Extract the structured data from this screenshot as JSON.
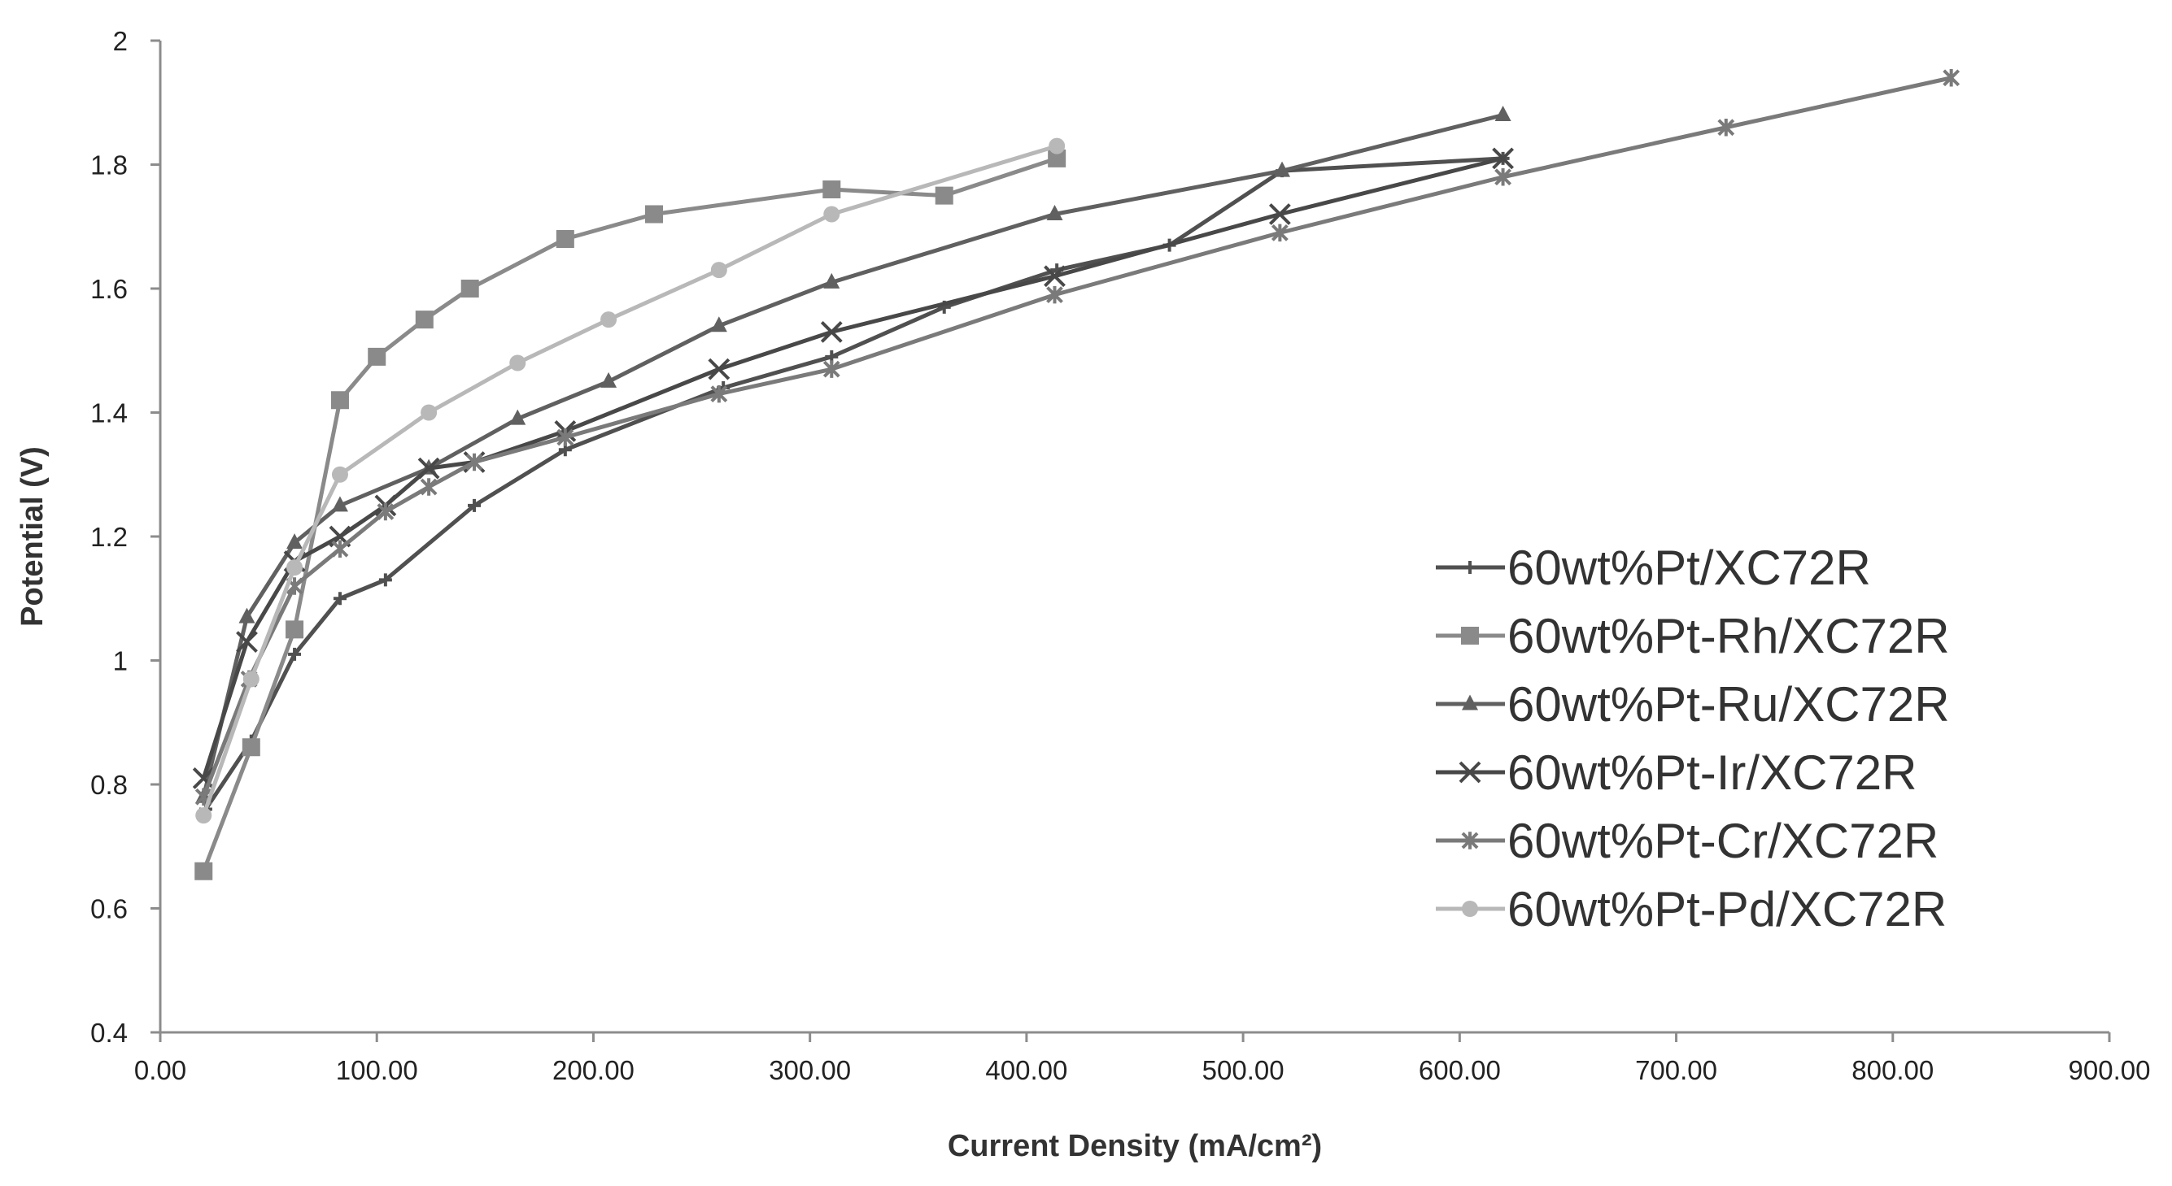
{
  "chart_data": {
    "type": "line",
    "title": "",
    "xlabel": "Current Density (mA/cm²)",
    "ylabel": "Potential (V)",
    "xlim": [
      0,
      900
    ],
    "ylim": [
      0.4,
      2
    ],
    "xticks": [
      "0.00",
      "100.00",
      "200.00",
      "300.00",
      "400.00",
      "500.00",
      "600.00",
      "700.00",
      "800.00",
      "900.00"
    ],
    "yticks": [
      "0.4",
      "0.6",
      "0.8",
      "1",
      "1.2",
      "1.4",
      "1.6",
      "1.8",
      "2"
    ],
    "grid": false,
    "legend_position": "right",
    "series": [
      {
        "name": "60wt%Pt/XC72R",
        "marker": "plus",
        "color": "#505050",
        "x": [
          21,
          42,
          62,
          83,
          104,
          145,
          187,
          260,
          310,
          362,
          414,
          466,
          518,
          620
        ],
        "y": [
          0.76,
          0.87,
          1.01,
          1.1,
          1.13,
          1.25,
          1.34,
          1.44,
          1.49,
          1.57,
          1.63,
          1.67,
          1.79,
          1.81
        ]
      },
      {
        "name": "60wt%Pt-Rh/XC72R",
        "marker": "square",
        "color": "#8a8a8a",
        "x": [
          20,
          42,
          62,
          83,
          100,
          122,
          143,
          187,
          228,
          310,
          362,
          414
        ],
        "y": [
          0.66,
          0.86,
          1.05,
          1.42,
          1.49,
          1.55,
          1.6,
          1.68,
          1.72,
          1.76,
          1.75,
          1.81
        ]
      },
      {
        "name": "60wt%Pt-Ru/XC72R",
        "marker": "triangle",
        "color": "#606060",
        "x": [
          20,
          40,
          62,
          83,
          124,
          165,
          207,
          258,
          310,
          413,
          518,
          620
        ],
        "y": [
          0.78,
          1.07,
          1.19,
          1.25,
          1.31,
          1.39,
          1.45,
          1.54,
          1.61,
          1.72,
          1.79,
          1.88
        ]
      },
      {
        "name": "60wt%Pt-Ir/XC72R",
        "marker": "x",
        "color": "#484848",
        "x": [
          20,
          40,
          62,
          83,
          104,
          124,
          145,
          187,
          258,
          310,
          413,
          517,
          620
        ],
        "y": [
          0.81,
          1.03,
          1.16,
          1.2,
          1.25,
          1.31,
          1.32,
          1.37,
          1.47,
          1.53,
          1.62,
          1.72,
          1.81
        ]
      },
      {
        "name": "60wt%Pt-Cr/XC72R",
        "marker": "star",
        "color": "#7a7a7a",
        "x": [
          20,
          41,
          62,
          83,
          104,
          124,
          145,
          187,
          258,
          310,
          413,
          517,
          620,
          723,
          827
        ],
        "y": [
          0.78,
          0.97,
          1.12,
          1.18,
          1.24,
          1.28,
          1.32,
          1.36,
          1.43,
          1.47,
          1.59,
          1.69,
          1.78,
          1.86,
          1.94
        ]
      },
      {
        "name": "60wt%Pt-Pd/XC72R",
        "marker": "circle",
        "color": "#b8b8b8",
        "x": [
          20,
          42,
          62,
          83,
          124,
          165,
          207,
          258,
          310,
          414
        ],
        "y": [
          0.75,
          0.97,
          1.15,
          1.3,
          1.4,
          1.48,
          1.55,
          1.63,
          1.72,
          1.83
        ]
      }
    ]
  }
}
